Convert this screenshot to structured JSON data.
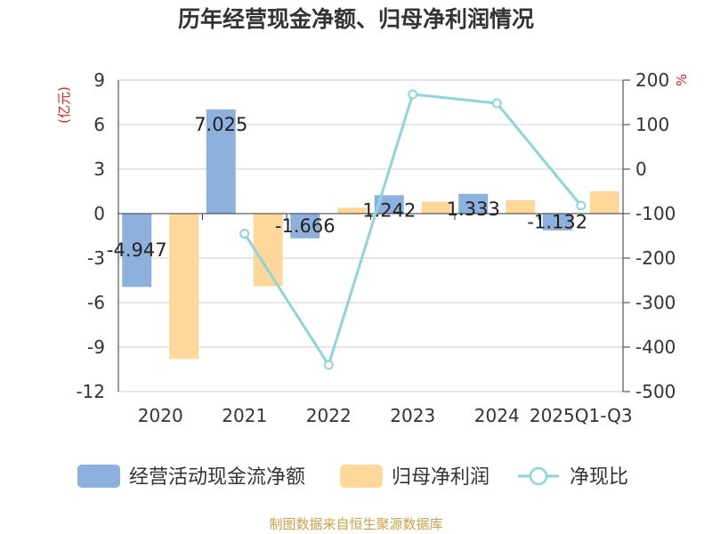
{
  "chart_data": {
    "type": "bar",
    "title": "历年经营现金净额、归母净利润情况",
    "categories": [
      "2020",
      "2021",
      "2022",
      "2023",
      "2024",
      "2025Q1-Q3"
    ],
    "left_axis": {
      "unit_label": "(亿元)",
      "ylim": [
        -12,
        9
      ],
      "ticks": [
        -12,
        -9,
        -6,
        -3,
        0,
        3,
        6,
        9
      ]
    },
    "right_axis": {
      "unit_label": "%",
      "ylim": [
        -500,
        200
      ],
      "ticks": [
        -500,
        -400,
        -300,
        -200,
        -100,
        0,
        100,
        200
      ]
    },
    "series": [
      {
        "name": "经营活动现金流净额",
        "kind": "bar",
        "axis": "left",
        "color": "#8eb0dc",
        "values": [
          -4.947,
          7.025,
          -1.666,
          1.242,
          1.333,
          -1.132
        ],
        "labels": [
          "-4.947",
          "7.025",
          "-1.666",
          "1.242",
          "1.333",
          "-1.132"
        ]
      },
      {
        "name": "归母净利润",
        "kind": "bar",
        "axis": "left",
        "color": "#fdd89a",
        "values": [
          -9.8,
          -4.9,
          0.4,
          0.8,
          0.9,
          1.5
        ]
      },
      {
        "name": "净现比",
        "kind": "line",
        "axis": "right",
        "color": "#8dd5da",
        "values": [
          null,
          -145,
          -440,
          168,
          148,
          -82
        ]
      }
    ],
    "grid": true,
    "legend_position": "bottom"
  },
  "source_note": "制图数据来自恒生聚源数据库"
}
